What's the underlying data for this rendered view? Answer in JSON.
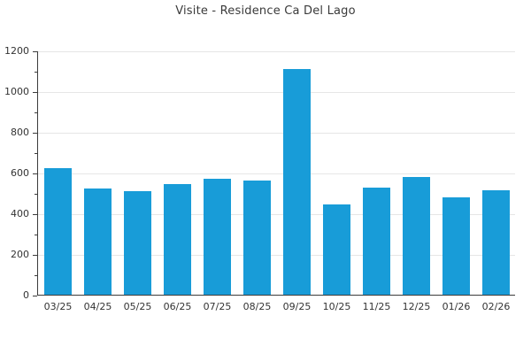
{
  "page": {
    "background": "#ffffff"
  },
  "chart_data": {
    "type": "bar",
    "title": "Visite - Residence Ca Del Lago",
    "categories": [
      "03/25",
      "04/25",
      "05/25",
      "06/25",
      "07/25",
      "08/25",
      "09/25",
      "10/25",
      "11/25",
      "12/25",
      "01/26",
      "02/26"
    ],
    "values": [
      620,
      520,
      510,
      545,
      570,
      560,
      1110,
      445,
      525,
      580,
      480,
      515
    ],
    "series_name": "Visite",
    "xlabel": "",
    "ylabel": "",
    "ylim": [
      0,
      1200
    ],
    "yticks": [
      0,
      200,
      400,
      600,
      800,
      1000,
      1200
    ],
    "y_minor_ticks": [
      100,
      300,
      500,
      700,
      900,
      1100
    ],
    "grid": "horizontal-major",
    "legend": "none",
    "bar_color": "#189cd8",
    "grid_color": "#e6e6e6",
    "axis_color": "#3c3c3c",
    "text_color": "#333333",
    "title_color": "#3a3a3a"
  }
}
